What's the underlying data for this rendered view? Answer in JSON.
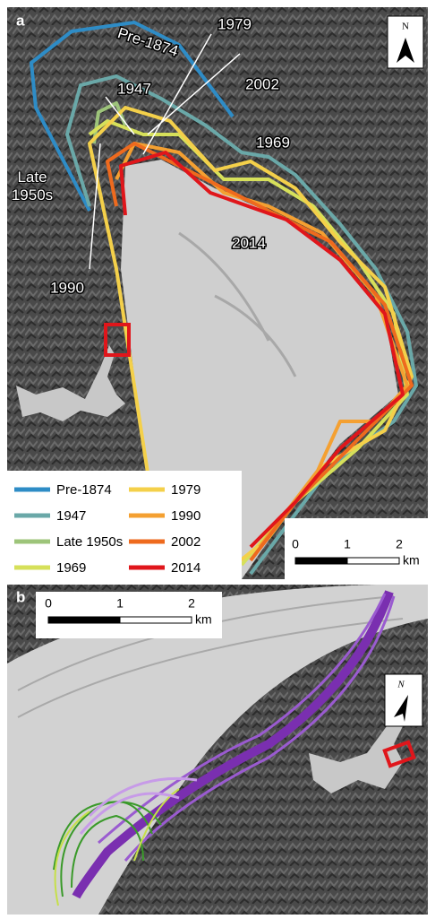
{
  "panel_a": {
    "label": "a",
    "north": "N",
    "annotations": [
      "Pre-1874",
      "1947",
      "1979",
      "2002",
      "1969",
      "Late 1950s",
      "1990",
      "2014"
    ],
    "legend": [
      {
        "name": "Pre-1874",
        "color": "#2e8cc6"
      },
      {
        "name": "1947",
        "color": "#6aa8a8"
      },
      {
        "name": "Late 1950s",
        "color": "#9dc47a"
      },
      {
        "name": "1969",
        "color": "#d6e05a"
      },
      {
        "name": "1979",
        "color": "#f4d04a"
      },
      {
        "name": "1990",
        "color": "#f4a031"
      },
      {
        "name": "2002",
        "color": "#ee6a1e"
      },
      {
        "name": "2014",
        "color": "#e0161b"
      }
    ],
    "scale": {
      "ticks": [
        "0",
        "1",
        "2"
      ],
      "unit": "km"
    }
  },
  "panel_b": {
    "label": "b",
    "north": "N",
    "scale": {
      "ticks": [
        "0",
        "1",
        "2"
      ],
      "unit": "km"
    }
  }
}
